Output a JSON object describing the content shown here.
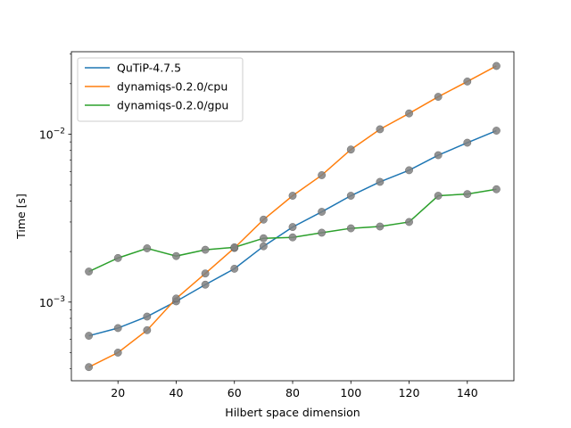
{
  "chart_data": {
    "type": "line",
    "title": "",
    "xlabel": "Hilbert space dimension",
    "ylabel": "Time [s]",
    "yscale": "log",
    "xlim": [
      4,
      156
    ],
    "ylim": [
      0.00034,
      0.031
    ],
    "xticks": [
      20,
      40,
      60,
      80,
      100,
      120,
      140
    ],
    "yticks": [
      {
        "value": 0.001,
        "base": "10",
        "exp": "−3"
      },
      {
        "value": 0.01,
        "base": "10",
        "exp": "−2"
      }
    ],
    "grid": false,
    "legend_position": "top-left",
    "marker_color": "#808080",
    "x": [
      10,
      20,
      30,
      40,
      50,
      60,
      70,
      80,
      90,
      100,
      110,
      120,
      130,
      140,
      150
    ],
    "series": [
      {
        "name": "QuTiP-4.7.5",
        "color": "#1f77b4",
        "values": [
          0.00063,
          0.0007,
          0.00082,
          0.00101,
          0.00127,
          0.00158,
          0.00215,
          0.0028,
          0.00345,
          0.0043,
          0.0052,
          0.0061,
          0.0075,
          0.0089,
          0.0105
        ]
      },
      {
        "name": "dynamiqs-0.2.0/cpu",
        "color": "#ff7f0e",
        "values": [
          0.00041,
          0.0005,
          0.00068,
          0.00105,
          0.00148,
          0.0021,
          0.0031,
          0.0043,
          0.0057,
          0.0081,
          0.0107,
          0.0133,
          0.0167,
          0.0206,
          0.0255
        ]
      },
      {
        "name": "dynamiqs-0.2.0/gpu",
        "color": "#2ca02c",
        "values": [
          0.00152,
          0.00183,
          0.00209,
          0.00188,
          0.00205,
          0.00212,
          0.0024,
          0.00243,
          0.00259,
          0.00275,
          0.00282,
          0.003,
          0.0043,
          0.0044,
          0.0047
        ]
      }
    ]
  }
}
